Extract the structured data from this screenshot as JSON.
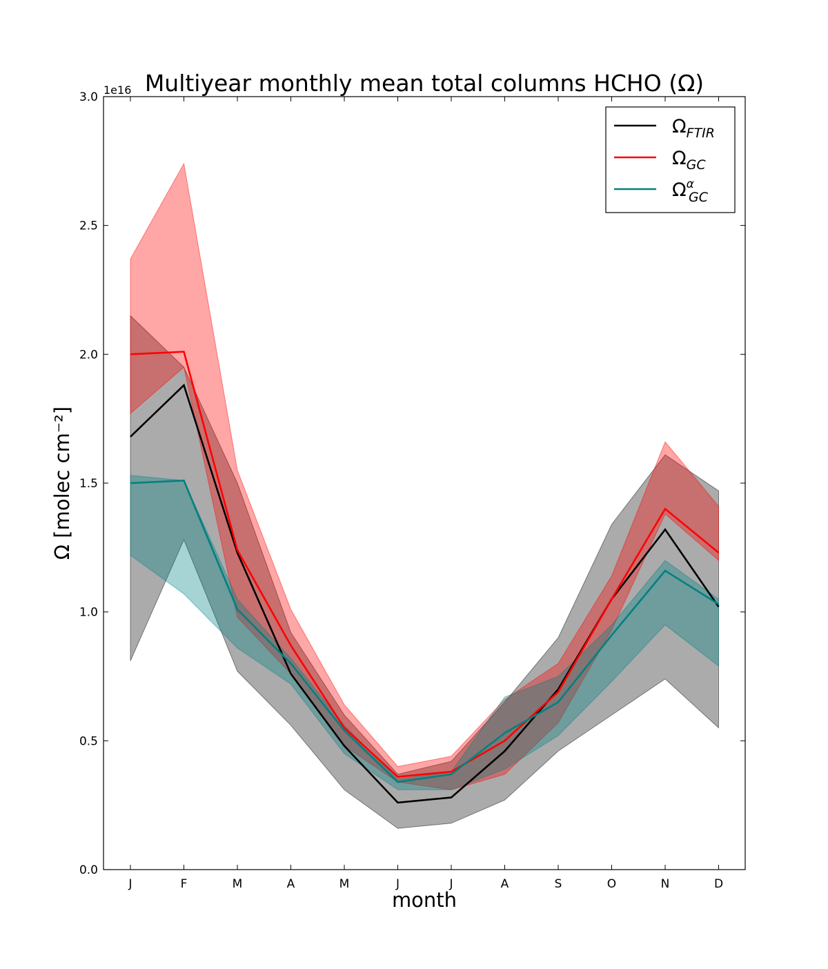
{
  "chart_data": {
    "type": "line",
    "title": "Multiyear monthly mean total columns HCHO (Ω)",
    "xlabel": "month",
    "ylabel": "Ω [molec cm⁻²]",
    "y_scale_label": "1e16",
    "categories": [
      "J",
      "F",
      "M",
      "A",
      "M",
      "J",
      "J",
      "A",
      "S",
      "O",
      "N",
      "D"
    ],
    "ylim": [
      0,
      3.0
    ],
    "y_multiplier": 1e+16,
    "yticks": [
      0.0,
      0.5,
      1.0,
      1.5,
      2.0,
      2.5,
      3.0
    ],
    "ytick_labels": [
      "0.0",
      "0.5",
      "1.0",
      "1.5",
      "2.0",
      "2.5",
      "3.0"
    ],
    "grid": false,
    "legend_position": "top-right",
    "series": [
      {
        "name": "Ω_FTIR",
        "legend_base": "Ω",
        "legend_sub": "FTIR",
        "legend_sup": "",
        "color": "#000000",
        "band_color": "#000000",
        "band_opacity": 0.33,
        "values": [
          1.68,
          1.88,
          1.23,
          0.76,
          0.48,
          0.26,
          0.28,
          0.46,
          0.7,
          1.05,
          1.32,
          1.02
        ],
        "upper": [
          2.15,
          1.95,
          1.5,
          0.92,
          0.6,
          0.37,
          0.42,
          0.65,
          0.9,
          1.34,
          1.61,
          1.47
        ],
        "lower": [
          0.81,
          1.28,
          0.77,
          0.56,
          0.31,
          0.16,
          0.18,
          0.27,
          0.46,
          0.6,
          0.74,
          0.55
        ]
      },
      {
        "name": "Ω_GC",
        "legend_base": "Ω",
        "legend_sub": "GC",
        "legend_sup": "",
        "color": "#ff0000",
        "band_color": "#ff0000",
        "band_opacity": 0.35,
        "values": [
          2.0,
          2.01,
          1.24,
          0.87,
          0.55,
          0.36,
          0.38,
          0.5,
          0.69,
          1.05,
          1.4,
          1.23
        ],
        "upper": [
          2.37,
          2.74,
          1.55,
          1.01,
          0.64,
          0.4,
          0.44,
          0.66,
          0.8,
          1.14,
          1.66,
          1.41
        ],
        "lower": [
          1.77,
          1.95,
          0.98,
          0.76,
          0.48,
          0.34,
          0.31,
          0.37,
          0.57,
          0.93,
          1.38,
          1.2
        ]
      },
      {
        "name": "Ω_GC^α",
        "legend_base": "Ω",
        "legend_sub": "GC",
        "legend_sup": "α",
        "color": "#008080",
        "band_color": "#008080",
        "band_opacity": 0.35,
        "values": [
          1.5,
          1.51,
          1.01,
          0.8,
          0.54,
          0.34,
          0.37,
          0.53,
          0.65,
          0.91,
          1.16,
          1.03
        ],
        "upper": [
          1.53,
          1.51,
          1.05,
          0.82,
          0.56,
          0.35,
          0.38,
          0.67,
          0.75,
          0.95,
          1.2,
          1.05
        ],
        "lower": [
          1.22,
          1.07,
          0.86,
          0.72,
          0.45,
          0.31,
          0.31,
          0.39,
          0.52,
          0.73,
          0.95,
          0.79
        ]
      }
    ]
  }
}
